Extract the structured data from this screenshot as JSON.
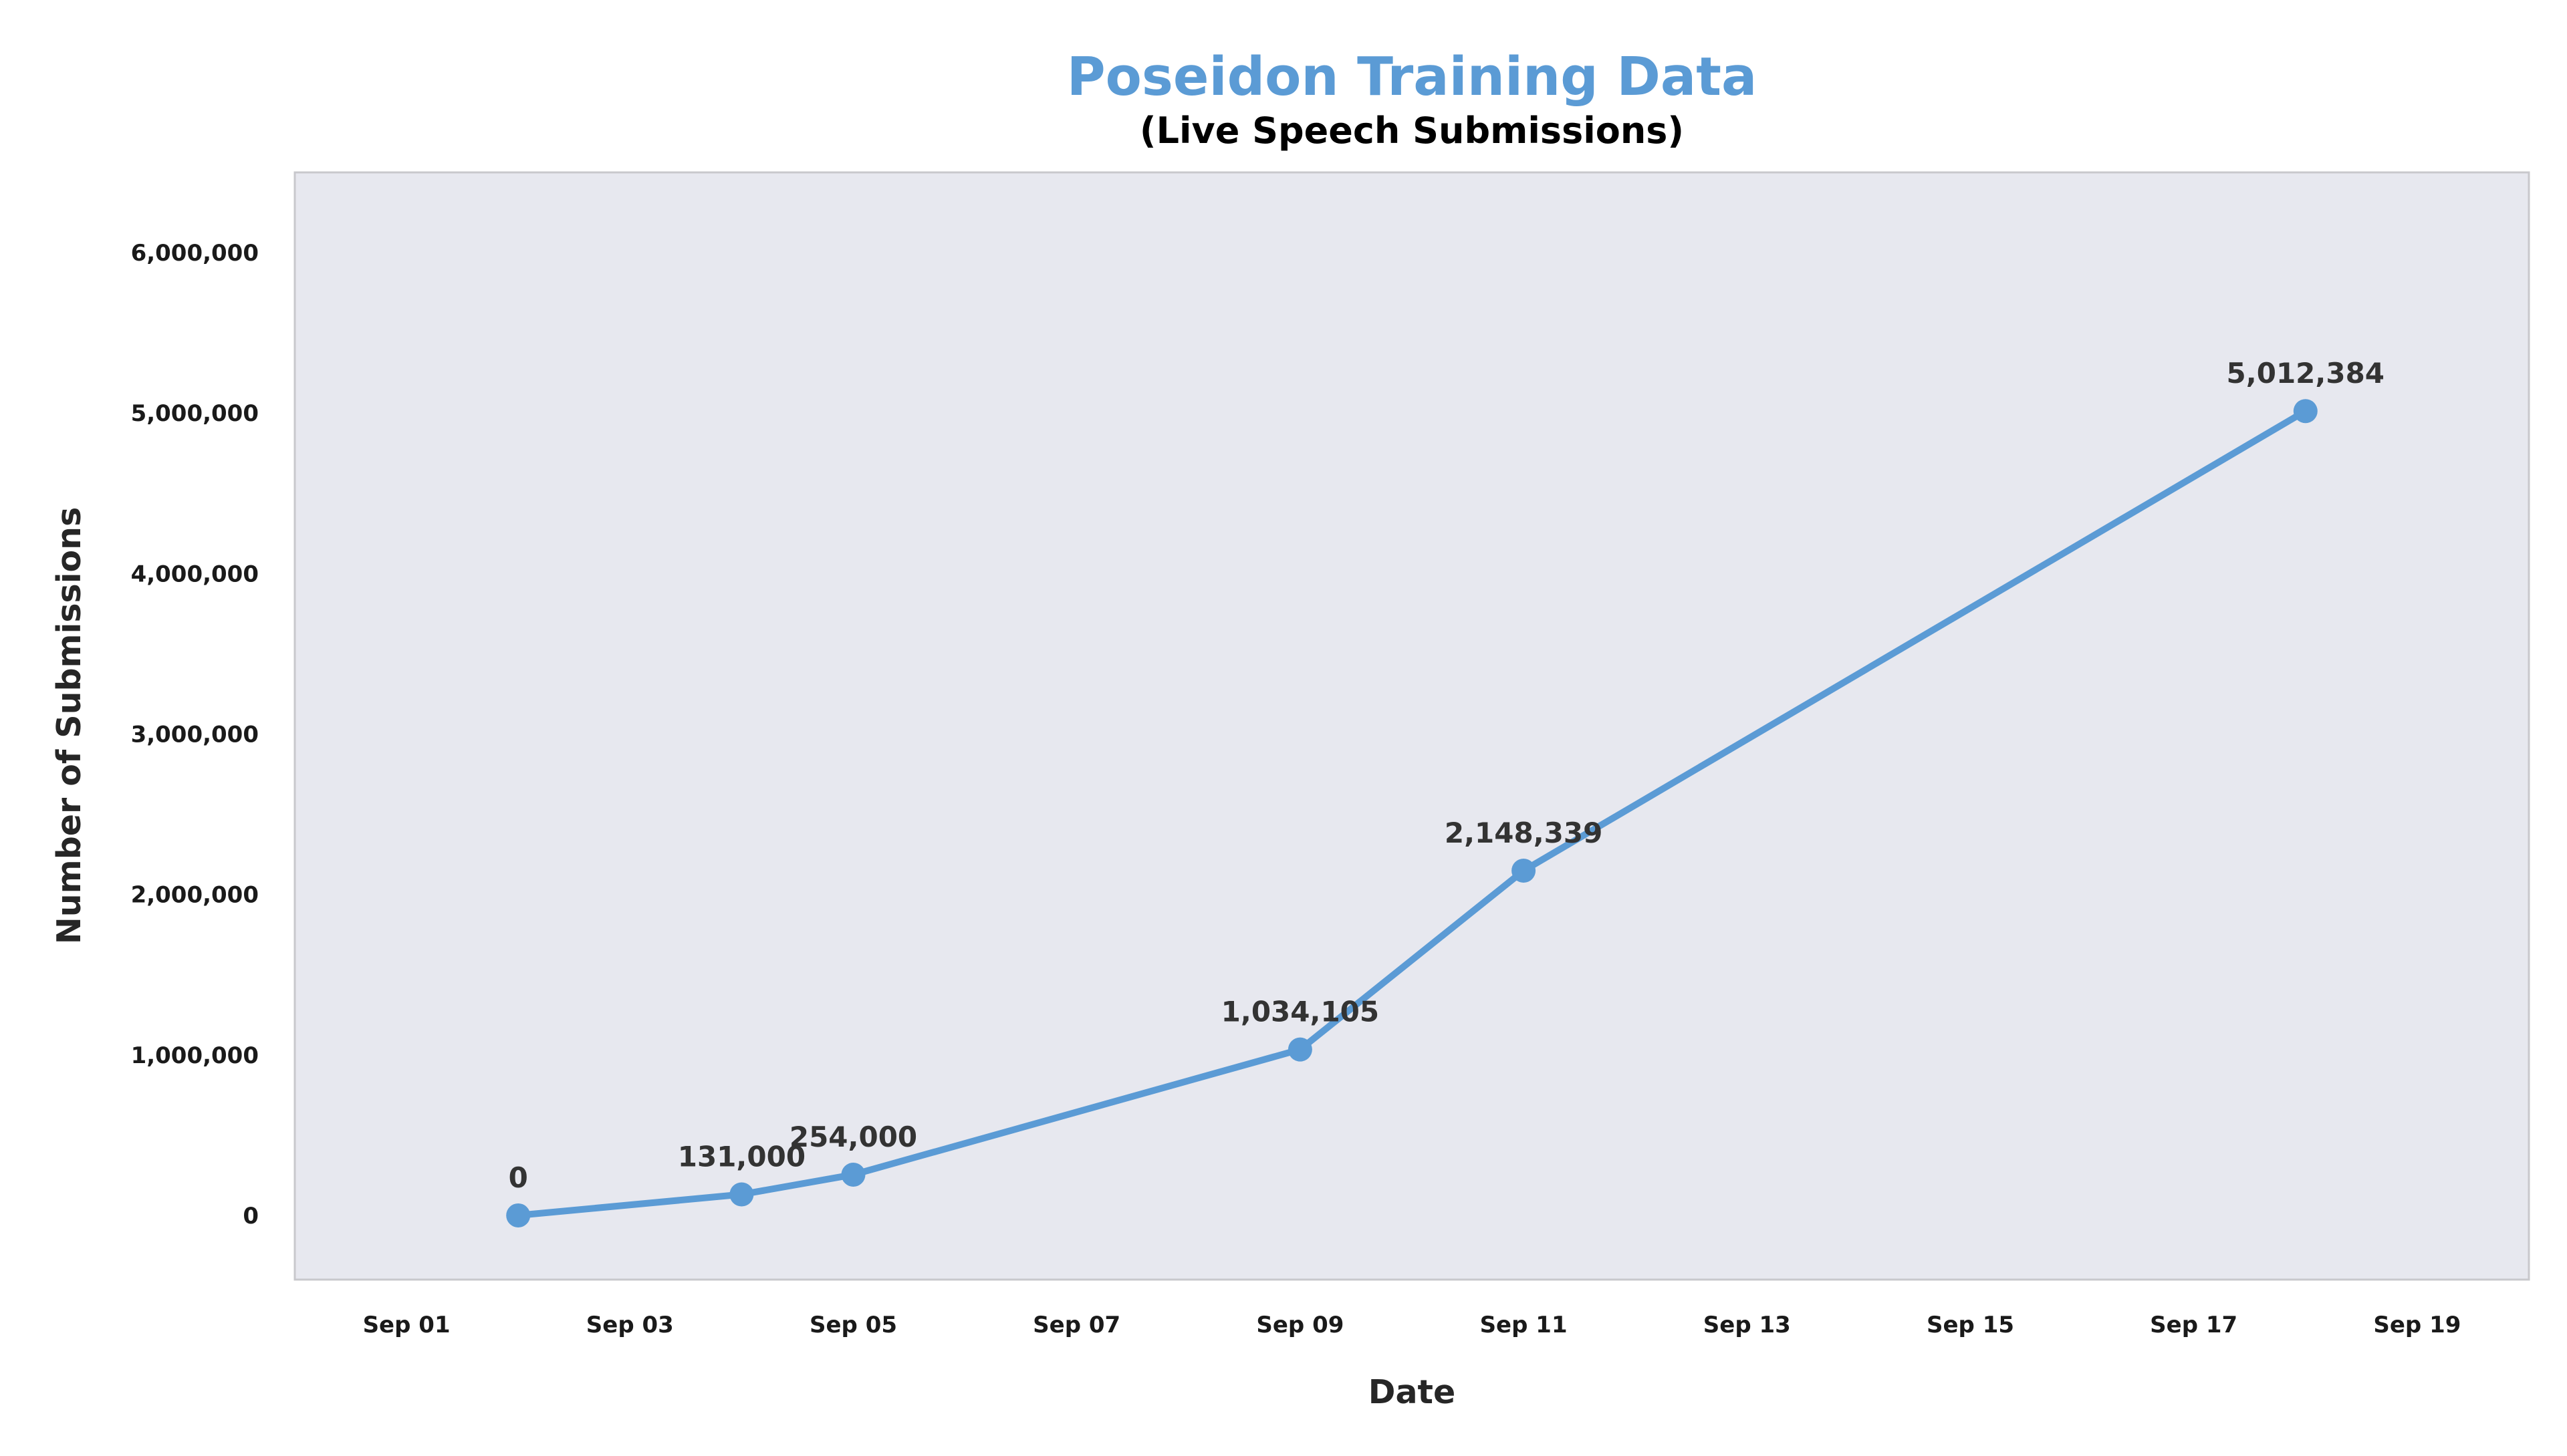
{
  "colors": {
    "accent": "#5b9bd5",
    "plot_background": "#e7e8ef",
    "plot_border": "#c8c8cc",
    "title": "#5b9bd5",
    "text": "#262626"
  },
  "chart_data": {
    "type": "line",
    "title": "Poseidon Training Data",
    "subtitle": "(Live Speech Submissions)",
    "xlabel": "Date",
    "ylabel": "Number of Submissions",
    "x_axis_type": "date",
    "xlim": [
      "Sep 00",
      "Sep 20"
    ],
    "ylim": [
      -400000,
      6500000
    ],
    "xticks": [
      "Sep 01",
      "Sep 03",
      "Sep 05",
      "Sep 07",
      "Sep 09",
      "Sep 11",
      "Sep 13",
      "Sep 15",
      "Sep 17",
      "Sep 19"
    ],
    "yticks": [
      {
        "value": 0,
        "label": "0"
      },
      {
        "value": 1000000,
        "label": "1,000,000"
      },
      {
        "value": 2000000,
        "label": "2,000,000"
      },
      {
        "value": 3000000,
        "label": "3,000,000"
      },
      {
        "value": 4000000,
        "label": "4,000,000"
      },
      {
        "value": 5000000,
        "label": "5,000,000"
      },
      {
        "value": 6000000,
        "label": "6,000,000"
      }
    ],
    "grid": false,
    "legend": "none",
    "series": [
      {
        "x": [
          "Sep 02",
          "Sep 04",
          "Sep 05",
          "Sep 09",
          "Sep 11",
          "Sep 18"
        ],
        "values": [
          0,
          131000,
          254000,
          1034105,
          2148339,
          5012384
        ],
        "labels": [
          "0",
          "131,000",
          "254,000",
          "1,034,105",
          "2,148,339",
          "5,012,384"
        ]
      }
    ]
  }
}
